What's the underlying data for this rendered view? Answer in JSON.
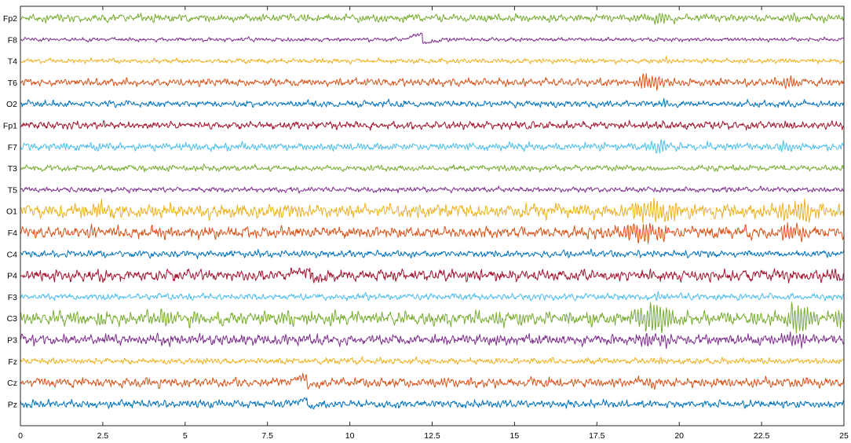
{
  "chart_data": {
    "type": "line",
    "title": "",
    "xlabel": "",
    "ylabel": "",
    "xlim": [
      0,
      25
    ],
    "x_ticks": [
      0,
      2.5,
      5,
      7.5,
      10,
      12.5,
      15,
      17.5,
      20,
      22.5,
      25
    ],
    "x_tick_labels": [
      "0",
      "2.5",
      "5",
      "7.5",
      "10",
      "12.5",
      "15",
      "17.5",
      "20",
      "22.5",
      "25"
    ],
    "grid": false,
    "legend": "none",
    "series": [
      {
        "name": "Fp2",
        "color": "#77ac30",
        "amp": 0.9,
        "bursts": [
          [
            2.4,
            2.5,
            0.8
          ],
          [
            4.2,
            4.4,
            0.6
          ],
          [
            19.0,
            19.8,
            1.8
          ],
          [
            23.0,
            23.6,
            1.2
          ]
        ]
      },
      {
        "name": "F8",
        "color": "#7e2f8e",
        "amp": 0.45,
        "bursts": [
          [
            12.3,
            12.6,
            0.3
          ]
        ],
        "events": [
          [
            12.2,
            2.5,
            0.35
          ]
        ]
      },
      {
        "name": "T4",
        "color": "#edb120",
        "amp": 0.55,
        "bursts": [
          [
            19.0,
            20.0,
            0.6
          ]
        ]
      },
      {
        "name": "T6",
        "color": "#d95319",
        "amp": 0.9,
        "bursts": [
          [
            18.5,
            19.8,
            2.2
          ],
          [
            20.5,
            21.0,
            1.0
          ],
          [
            22.8,
            23.8,
            1.6
          ]
        ]
      },
      {
        "name": "O2",
        "color": "#0072bd",
        "amp": 0.75,
        "bursts": [
          [
            17.8,
            18.2,
            0.6
          ],
          [
            19.3,
            19.8,
            0.8
          ]
        ]
      },
      {
        "name": "Fp1",
        "color": "#a2142f",
        "amp": 0.9,
        "bursts": [
          [
            2.3,
            2.6,
            1.2
          ],
          [
            19.0,
            19.6,
            0.8
          ],
          [
            23.0,
            23.6,
            0.8
          ]
        ]
      },
      {
        "name": "F7",
        "color": "#4dbeee",
        "amp": 0.9,
        "bursts": [
          [
            2.3,
            2.6,
            1.2
          ],
          [
            19.0,
            19.8,
            1.4
          ],
          [
            23.0,
            23.6,
            1.0
          ]
        ]
      },
      {
        "name": "T3",
        "color": "#77ac30",
        "amp": 0.7,
        "bursts": [
          [
            19.0,
            19.8,
            0.6
          ]
        ]
      },
      {
        "name": "T5",
        "color": "#7e2f8e",
        "amp": 0.6,
        "bursts": [
          [
            19.0,
            19.6,
            0.5
          ]
        ]
      },
      {
        "name": "O1",
        "color": "#edb120",
        "amp": 1.6,
        "bursts": [
          [
            2.2,
            2.6,
            2.2
          ],
          [
            4.0,
            4.6,
            1.6
          ],
          [
            18.3,
            20.2,
            3.5
          ],
          [
            22.8,
            24.5,
            3.0
          ],
          [
            24.7,
            25.0,
            2.0
          ]
        ]
      },
      {
        "name": "F4",
        "color": "#d95319",
        "amp": 1.3,
        "bursts": [
          [
            2.0,
            2.6,
            1.2
          ],
          [
            4.0,
            4.5,
            1.0
          ],
          [
            17.8,
            20.0,
            2.8
          ],
          [
            22.8,
            24.0,
            2.4
          ]
        ]
      },
      {
        "name": "C4",
        "color": "#0072bd",
        "amp": 0.8,
        "bursts": [
          [
            19.0,
            19.6,
            0.6
          ]
        ]
      },
      {
        "name": "P4",
        "color": "#a2142f",
        "amp": 1.3,
        "bursts": [
          [
            2.3,
            2.6,
            1.0
          ],
          [
            19.0,
            19.5,
            0.8
          ],
          [
            24.5,
            25.0,
            1.0
          ]
        ],
        "events": [
          [
            8.8,
            2.0,
            0.6
          ]
        ]
      },
      {
        "name": "F3",
        "color": "#4dbeee",
        "amp": 0.75,
        "bursts": [
          [
            19.0,
            19.7,
            0.8
          ]
        ]
      },
      {
        "name": "C3",
        "color": "#77ac30",
        "amp": 1.6,
        "bursts": [
          [
            2.2,
            2.6,
            3.0
          ],
          [
            4.0,
            4.6,
            1.6
          ],
          [
            18.3,
            20.2,
            4.0
          ],
          [
            22.8,
            24.5,
            3.4
          ],
          [
            24.6,
            25.0,
            2.4
          ]
        ]
      },
      {
        "name": "P3",
        "color": "#7e2f8e",
        "amp": 1.2,
        "bursts": [
          [
            2.3,
            2.6,
            1.0
          ],
          [
            4.0,
            4.5,
            1.0
          ],
          [
            18.5,
            20.0,
            2.0
          ],
          [
            22.8,
            24.0,
            1.8
          ]
        ]
      },
      {
        "name": "Fz",
        "color": "#edb120",
        "amp": 0.7,
        "bursts": [
          [
            19.0,
            19.6,
            0.6
          ]
        ]
      },
      {
        "name": "Cz",
        "color": "#d95319",
        "amp": 1.1,
        "bursts": [
          [
            19.0,
            19.6,
            0.7
          ]
        ],
        "events": [
          [
            8.7,
            2.0,
            0.5
          ]
        ]
      },
      {
        "name": "Pz",
        "color": "#0072bd",
        "amp": 0.9,
        "bursts": [
          [
            21.0,
            21.1,
            0.8
          ]
        ],
        "events": [
          [
            8.7,
            1.8,
            0.4
          ]
        ]
      }
    ]
  }
}
